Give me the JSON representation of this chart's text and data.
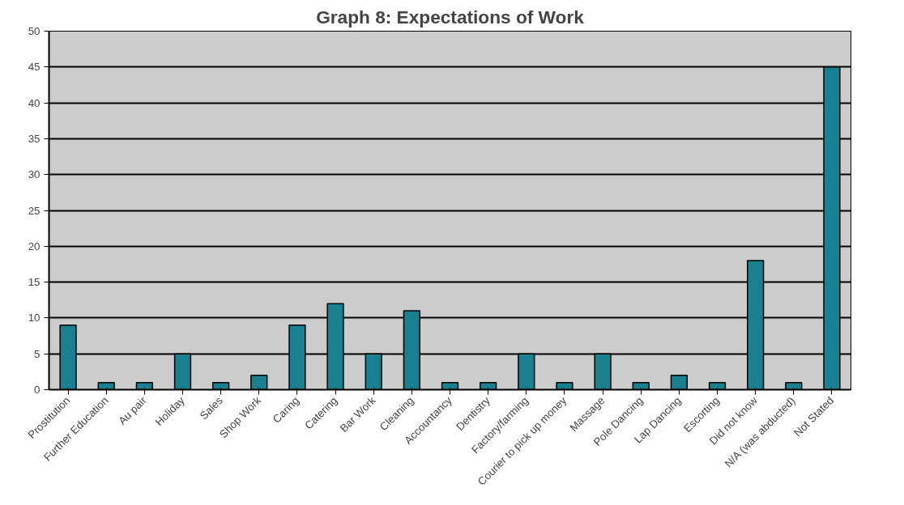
{
  "chart_data": {
    "type": "bar",
    "title": "Graph 8: Expectations of Work",
    "categories": [
      "Prostitution",
      "Further Education",
      "Au pair",
      "Holiday",
      "Sales",
      "Shop Work",
      "Caring",
      "Catering",
      "Bar Work",
      "Cleaning",
      "Accountancy",
      "Dentistry",
      "Factory/farming",
      "Courier to pick up money",
      "Massage",
      "Pole Dancing",
      "Lap Dancing",
      "Escorting",
      "Did not know",
      "N/A (was abducted)",
      "Not Stated"
    ],
    "values": [
      9,
      1,
      1,
      5,
      1,
      2,
      9,
      12,
      5,
      11,
      1,
      1,
      5,
      1,
      5,
      1,
      2,
      1,
      18,
      1,
      45
    ],
    "color": "#1a7f8e",
    "ylim": [
      0,
      50
    ],
    "yticks": [
      0,
      5,
      10,
      15,
      20,
      25,
      30,
      35,
      40,
      45,
      50
    ],
    "grid": "y"
  }
}
